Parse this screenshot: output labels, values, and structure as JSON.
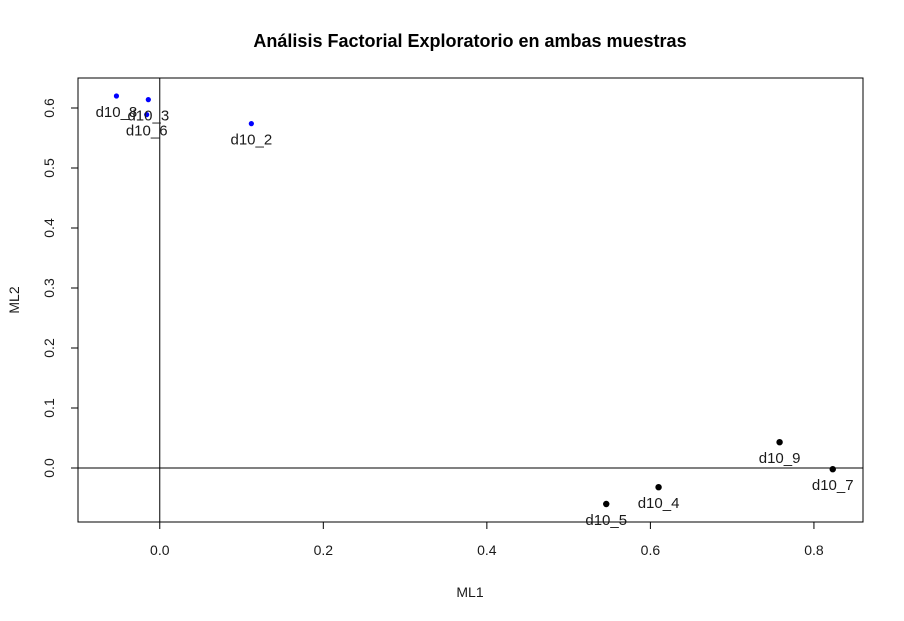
{
  "chart_data": {
    "type": "scatter",
    "title": "Análisis Factorial Exploratorio en ambas muestras",
    "xlabel": "ML1",
    "ylabel": "ML2",
    "xlim": [
      -0.1,
      0.86
    ],
    "ylim": [
      -0.09,
      0.65
    ],
    "x_ticks": [
      0.0,
      0.2,
      0.4,
      0.6,
      0.8
    ],
    "x_tick_labels": [
      "0.0",
      "0.2",
      "0.4",
      "0.6",
      "0.8"
    ],
    "y_ticks": [
      0.0,
      0.1,
      0.2,
      0.3,
      0.4,
      0.5,
      0.6
    ],
    "y_tick_labels": [
      "0.0",
      "0.1",
      "0.2",
      "0.3",
      "0.4",
      "0.5",
      "0.6"
    ],
    "reference_lines": {
      "x": 0,
      "y": 0
    },
    "grid": false,
    "points": [
      {
        "label": "d10_8",
        "x": -0.053,
        "y": 0.62,
        "color": "#0000ff",
        "group": 2
      },
      {
        "label": "d10_3",
        "x": -0.014,
        "y": 0.614,
        "color": "#0000ff",
        "group": 2
      },
      {
        "label": "d10_6",
        "x": -0.016,
        "y": 0.589,
        "color": "#0000ff",
        "group": 2
      },
      {
        "label": "d10_2",
        "x": 0.112,
        "y": 0.574,
        "color": "#0000ff",
        "group": 2
      },
      {
        "label": "d10_9",
        "x": 0.758,
        "y": 0.043,
        "color": "#000000",
        "group": 1
      },
      {
        "label": "d10_7",
        "x": 0.823,
        "y": -0.002,
        "color": "#000000",
        "group": 1
      },
      {
        "label": "d10_4",
        "x": 0.61,
        "y": -0.032,
        "color": "#000000",
        "group": 1
      },
      {
        "label": "d10_5",
        "x": 0.546,
        "y": -0.06,
        "color": "#000000",
        "group": 1
      }
    ]
  }
}
